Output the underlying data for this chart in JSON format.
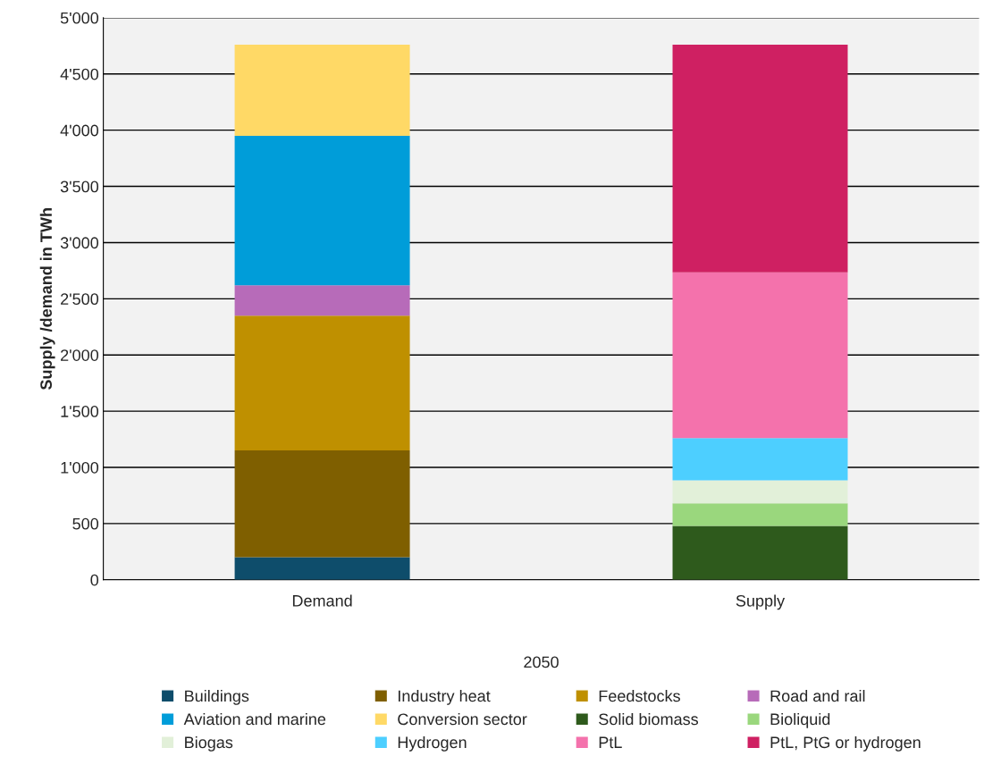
{
  "chart_data": {
    "type": "bar",
    "stacked": true,
    "ylabel": "Supply /demand in TWh",
    "xlabel": "2050",
    "categories": [
      "Demand",
      "Supply"
    ],
    "series": [
      {
        "name": "Buildings",
        "color": "#0e4d6b",
        "values": [
          200,
          null
        ]
      },
      {
        "name": "Industry heat",
        "color": "#7f5f00",
        "values": [
          950,
          null
        ]
      },
      {
        "name": "Feedstocks",
        "color": "#bf9000",
        "values": [
          1200,
          null
        ]
      },
      {
        "name": "Road and rail",
        "color": "#b76bb9",
        "values": [
          270,
          null
        ]
      },
      {
        "name": "Aviation and marine",
        "color": "#009dd9",
        "values": [
          1330,
          null
        ]
      },
      {
        "name": "Conversion sector",
        "color": "#ffd966",
        "values": [
          810,
          null
        ]
      },
      {
        "name": "Solid biomass",
        "color": "#2e5a1c",
        "values": [
          null,
          480
        ]
      },
      {
        "name": "Bioliquid",
        "color": "#9ad77d",
        "values": [
          null,
          200
        ]
      },
      {
        "name": "Biogas",
        "color": "#e2f0d9",
        "values": [
          null,
          205
        ]
      },
      {
        "name": "Hydrogen",
        "color": "#4dcfff",
        "values": [
          null,
          375
        ]
      },
      {
        "name": "PtL",
        "color": "#f472ac",
        "values": [
          null,
          1475
        ]
      },
      {
        "name": "PtL, PtG or hydrogen",
        "color": "#cf2062",
        "values": [
          null,
          2025
        ]
      }
    ],
    "ylim": [
      0,
      5000
    ],
    "yticks": [
      0,
      500,
      {
        "value": 1000,
        "label": "1'000"
      },
      {
        "value": 1500,
        "label": "1'500"
      },
      {
        "value": 2000,
        "label": "2'000"
      },
      {
        "value": 2500,
        "label": "2'500"
      },
      {
        "value": 3000,
        "label": "3'000"
      },
      {
        "value": 3500,
        "label": "3'500"
      },
      {
        "value": 4000,
        "label": "4'000"
      },
      {
        "value": 4500,
        "label": "4'500"
      },
      {
        "value": 5000,
        "label": "5'000"
      }
    ],
    "grid": "y",
    "legend": "bottom"
  }
}
